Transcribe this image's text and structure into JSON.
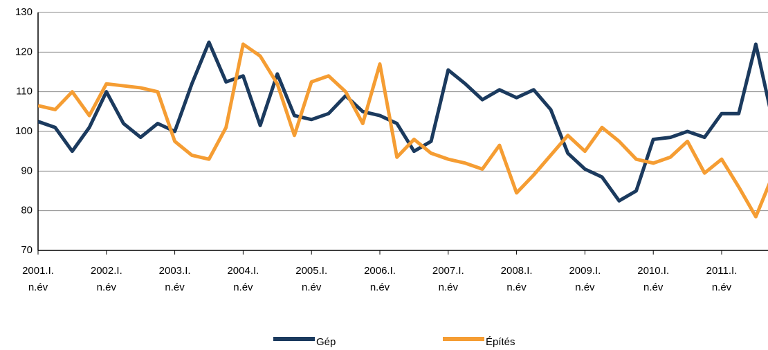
{
  "chart_data": {
    "type": "line",
    "categories": [
      "2001.I.\nn.év",
      null,
      null,
      null,
      "2002.I.\nn.év",
      null,
      null,
      null,
      "2003.I.\nn.év",
      null,
      null,
      null,
      "2004.I.\nn.év",
      null,
      null,
      null,
      "2005.I.\nn.év",
      null,
      null,
      null,
      "2006.I.\nn.év",
      null,
      null,
      null,
      "2007.I.\nn.év",
      null,
      null,
      null,
      "2008.I.\nn.év",
      null,
      null,
      null,
      "2009.I.\nn.év",
      null,
      null,
      null,
      "2010.I.\nn.év",
      null,
      null,
      null,
      "2011.I.\nn.év",
      null,
      null,
      null
    ],
    "series": [
      {
        "name": "Gép",
        "color": "#1b3a5e",
        "values": [
          102.5,
          101,
          95,
          101,
          110,
          102,
          98.5,
          102,
          100,
          112,
          122.5,
          112.5,
          114,
          101.5,
          114.5,
          104,
          103,
          104.5,
          109,
          105,
          104,
          102,
          95,
          97.5,
          115.5,
          112,
          108,
          110.5,
          108.5,
          110.5,
          105.5,
          94.5,
          90.5,
          88.5,
          82.5,
          85,
          98,
          98.5,
          100,
          98.5,
          104.5,
          104.5,
          122,
          102.5
        ]
      },
      {
        "name": "Építés",
        "color": "#f59d33",
        "values": [
          106.5,
          105.5,
          110,
          104,
          112,
          111.5,
          111,
          110,
          97.5,
          94,
          93,
          101,
          122,
          119,
          112,
          99,
          112.5,
          114,
          110,
          102,
          117,
          93.5,
          98,
          94.5,
          93,
          92,
          90.5,
          96.5,
          84.5,
          89,
          94,
          99,
          95,
          101,
          97.5,
          93,
          92,
          93.5,
          97.5,
          89.5,
          93,
          86,
          78.5,
          89
        ]
      }
    ],
    "ylim": [
      70,
      130
    ],
    "yticks": [
      70,
      80,
      90,
      100,
      110,
      120,
      130
    ],
    "grid": true
  }
}
